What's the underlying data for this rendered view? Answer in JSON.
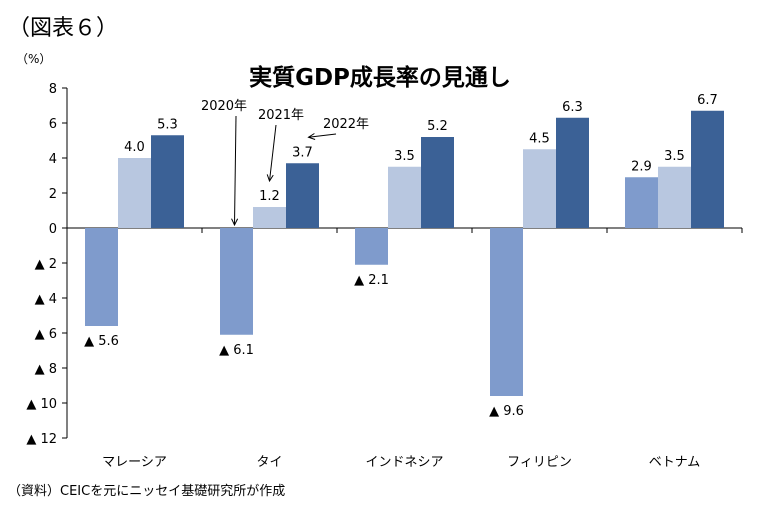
{
  "figure_label": "（図表６）",
  "source_note": "（資料）CEICを元にニッセイ基礎研究所が作成",
  "colors": {
    "s2020": "#7f9bcc",
    "s2021": "#b8c7e0",
    "s2022": "#3b6196"
  },
  "chart_data": {
    "type": "bar",
    "title": "実質GDP成長率の見通し",
    "ylabel": "（%）",
    "ylim": [
      -12,
      8
    ],
    "yticks": [
      8,
      6,
      4,
      2,
      0,
      -2,
      -4,
      -6,
      -8,
      -10,
      -12
    ],
    "ytick_labels": [
      "8",
      "6",
      "4",
      "2",
      "0",
      "▲ 2",
      "▲ 4",
      "▲ 6",
      "▲ 8",
      "▲ 10",
      "▲ 12"
    ],
    "categories": [
      "マレーシア",
      "タイ",
      "インドネシア",
      "フィリピン",
      "ベトナム"
    ],
    "series": [
      {
        "name": "2020年",
        "values": [
          -5.6,
          -6.1,
          -2.1,
          -9.6,
          2.9
        ],
        "labels": [
          "▲ 5.6",
          "▲ 6.1",
          "▲ 2.1",
          "▲ 9.6",
          "2.9"
        ]
      },
      {
        "name": "2021年",
        "values": [
          4.0,
          1.2,
          3.5,
          4.5,
          3.5
        ],
        "labels": [
          "4.0",
          "1.2",
          "3.5",
          "4.5",
          "3.5"
        ]
      },
      {
        "name": "2022年",
        "values": [
          5.3,
          3.7,
          5.2,
          6.3,
          6.7
        ],
        "labels": [
          "5.3",
          "3.7",
          "5.2",
          "6.3",
          "6.7"
        ]
      }
    ],
    "grid": false,
    "legend": "annotations on Thailand bars"
  }
}
